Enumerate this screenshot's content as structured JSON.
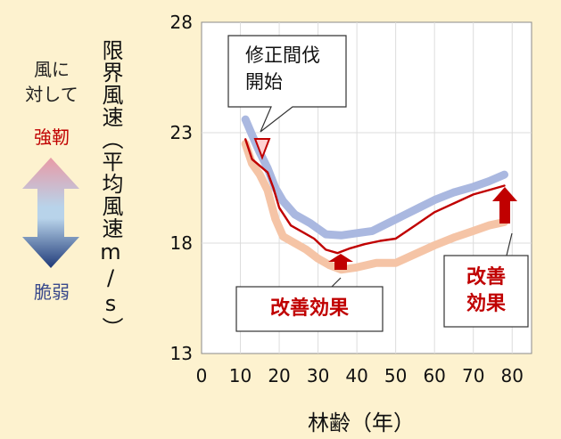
{
  "chart_data": {
    "type": "line",
    "xlabel": "林齢（年）",
    "ylabel": "限界風速（平均風速m/s）",
    "xlim": [
      0,
      85
    ],
    "ylim": [
      13,
      28
    ],
    "xticks": [
      0,
      10,
      20,
      30,
      40,
      50,
      60,
      70,
      80
    ],
    "yticks": [
      13,
      18,
      23,
      28
    ],
    "grid": true,
    "series": [
      {
        "color": "#aab8e0",
        "values": [
          [
            11.3,
            23.6
          ],
          [
            13,
            22.9
          ],
          [
            15,
            22.1
          ],
          [
            17,
            21.4
          ],
          [
            19,
            20.5
          ],
          [
            21,
            19.9
          ],
          [
            24,
            19.3
          ],
          [
            28,
            18.9
          ],
          [
            32,
            18.4
          ],
          [
            36,
            18.35
          ],
          [
            40,
            18.45
          ],
          [
            44,
            18.55
          ],
          [
            48,
            18.9
          ],
          [
            52,
            19.25
          ],
          [
            56,
            19.6
          ],
          [
            60,
            19.95
          ],
          [
            65,
            20.3
          ],
          [
            70,
            20.55
          ],
          [
            74,
            20.8
          ],
          [
            78,
            21.1
          ]
        ]
      },
      {
        "color": "#f5c4a6",
        "values": [
          [
            11.3,
            22.5
          ],
          [
            13,
            21.6
          ],
          [
            15,
            21.1
          ],
          [
            17,
            20.4
          ],
          [
            19,
            19.1
          ],
          [
            21,
            18.3
          ],
          [
            24,
            18.0
          ],
          [
            27,
            17.7
          ],
          [
            30,
            17.3
          ],
          [
            33,
            17.0
          ],
          [
            36,
            16.8
          ],
          [
            40,
            16.9
          ],
          [
            45,
            17.1
          ],
          [
            50,
            17.1
          ],
          [
            55,
            17.5
          ],
          [
            60,
            17.9
          ],
          [
            65,
            18.25
          ],
          [
            70,
            18.55
          ],
          [
            74,
            18.8
          ],
          [
            78,
            18.95
          ]
        ]
      },
      {
        "color": "#c00000",
        "values": [
          [
            11.3,
            22.7
          ],
          [
            13,
            21.8
          ],
          [
            15,
            21.5
          ],
          [
            17,
            21.2
          ],
          [
            18.5,
            20.5
          ],
          [
            20,
            19.6
          ],
          [
            23,
            18.8
          ],
          [
            26,
            18.5
          ],
          [
            29,
            18.2
          ],
          [
            32,
            17.7
          ],
          [
            35,
            17.55
          ],
          [
            38,
            17.75
          ],
          [
            42,
            17.95
          ],
          [
            46,
            18.1
          ],
          [
            50,
            18.2
          ],
          [
            55,
            18.8
          ],
          [
            60,
            19.4
          ],
          [
            65,
            19.8
          ],
          [
            70,
            20.2
          ],
          [
            74,
            20.4
          ],
          [
            78,
            20.6
          ]
        ]
      }
    ],
    "annotations": {
      "start_thinning": "修正間伐\n開始",
      "effect_middle": "改善効果",
      "effect_right": "改善\n効果"
    }
  },
  "legend": {
    "top": "風に\n対して",
    "strong": "強靭",
    "weak": "脆弱",
    "top_color": "#222222",
    "strong_color": "#c00000",
    "weak_color": "#3a4a8c"
  }
}
